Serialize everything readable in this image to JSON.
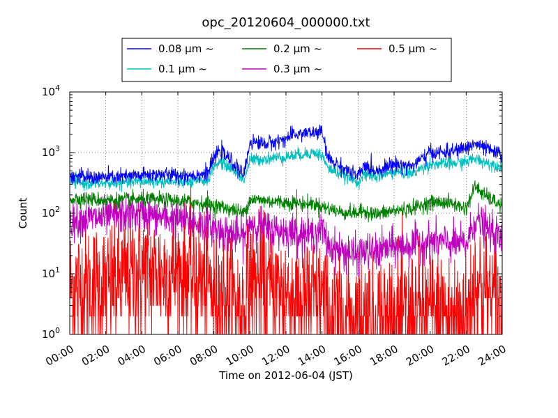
{
  "chart_data": {
    "type": "line",
    "title": "opc_20120604_000000.txt",
    "xlabel": "Time on 2012-06-04 (JST)",
    "ylabel": "Count",
    "yscale": "log",
    "ylim": [
      1,
      10000
    ],
    "xlim": [
      "00:00",
      "24:00"
    ],
    "x_tick_labels": [
      "00:00",
      "02:00",
      "04:00",
      "06:00",
      "08:00",
      "10:00",
      "12:00",
      "14:00",
      "16:00",
      "18:00",
      "20:00",
      "22:00",
      "24:00"
    ],
    "y_tick_labels": [
      {
        "base": "10",
        "exp": "0"
      },
      {
        "base": "10",
        "exp": "1"
      },
      {
        "base": "10",
        "exp": "2"
      },
      {
        "base": "10",
        "exp": "3"
      },
      {
        "base": "10",
        "exp": "4"
      }
    ],
    "grid": true,
    "legend_position": "top",
    "x": [
      "00:00",
      "01:00",
      "02:00",
      "03:00",
      "04:00",
      "05:00",
      "06:00",
      "07:00",
      "07:40",
      "08:00",
      "08:20",
      "09:00",
      "09:40",
      "10:00",
      "11:00",
      "12:00",
      "12:30",
      "13:00",
      "13:30",
      "14:00",
      "14:20",
      "15:00",
      "16:00",
      "16:20",
      "17:00",
      "17:20",
      "18:00",
      "19:00",
      "20:00",
      "21:00",
      "22:00",
      "22:30",
      "23:00",
      "24:00"
    ],
    "series": [
      {
        "name": "0.08 μm ~",
        "color": "#0000ff",
        "noise": 0.06,
        "values": [
          410,
          390,
          390,
          400,
          420,
          440,
          420,
          430,
          460,
          800,
          1100,
          700,
          420,
          1500,
          1400,
          1700,
          2000,
          2100,
          2100,
          2200,
          800,
          600,
          400,
          600,
          500,
          550,
          650,
          600,
          1000,
          1000,
          1200,
          1400,
          1200,
          900
        ]
      },
      {
        "name": "0.1 μm ~",
        "color": "#00bfbf",
        "noise": 0.05,
        "values": [
          330,
          310,
          310,
          320,
          330,
          340,
          320,
          330,
          350,
          600,
          700,
          550,
          350,
          750,
          800,
          850,
          900,
          950,
          1000,
          900,
          550,
          450,
          330,
          420,
          400,
          420,
          480,
          450,
          650,
          650,
          700,
          800,
          700,
          580
        ]
      },
      {
        "name": "0.2 μm ~",
        "color": "#008000",
        "noise": 0.06,
        "values": [
          175,
          170,
          165,
          165,
          170,
          165,
          160,
          150,
          140,
          130,
          130,
          115,
          100,
          170,
          160,
          150,
          150,
          140,
          145,
          130,
          120,
          105,
          100,
          110,
          95,
          100,
          110,
          120,
          150,
          150,
          120,
          280,
          200,
          130
        ]
      },
      {
        "name": "0.3 μm ~",
        "color": "#bf00bf",
        "noise": 0.15,
        "values": [
          75,
          80,
          85,
          95,
          100,
          85,
          80,
          70,
          60,
          60,
          50,
          45,
          40,
          70,
          55,
          50,
          48,
          45,
          45,
          55,
          30,
          24,
          20,
          24,
          22,
          25,
          28,
          30,
          35,
          32,
          30,
          80,
          60,
          35
        ]
      },
      {
        "name": "0.5 μm ~",
        "color": "#ff0000",
        "noise": 0.55,
        "values": [
          6,
          6,
          6,
          8,
          11,
          10,
          11,
          9,
          7,
          4,
          5,
          4,
          2.5,
          8,
          6,
          5,
          4,
          3.5,
          4,
          4,
          2,
          2,
          2,
          2,
          2,
          2,
          2,
          2,
          2.5,
          2,
          2,
          8,
          5,
          2.5
        ]
      }
    ]
  }
}
